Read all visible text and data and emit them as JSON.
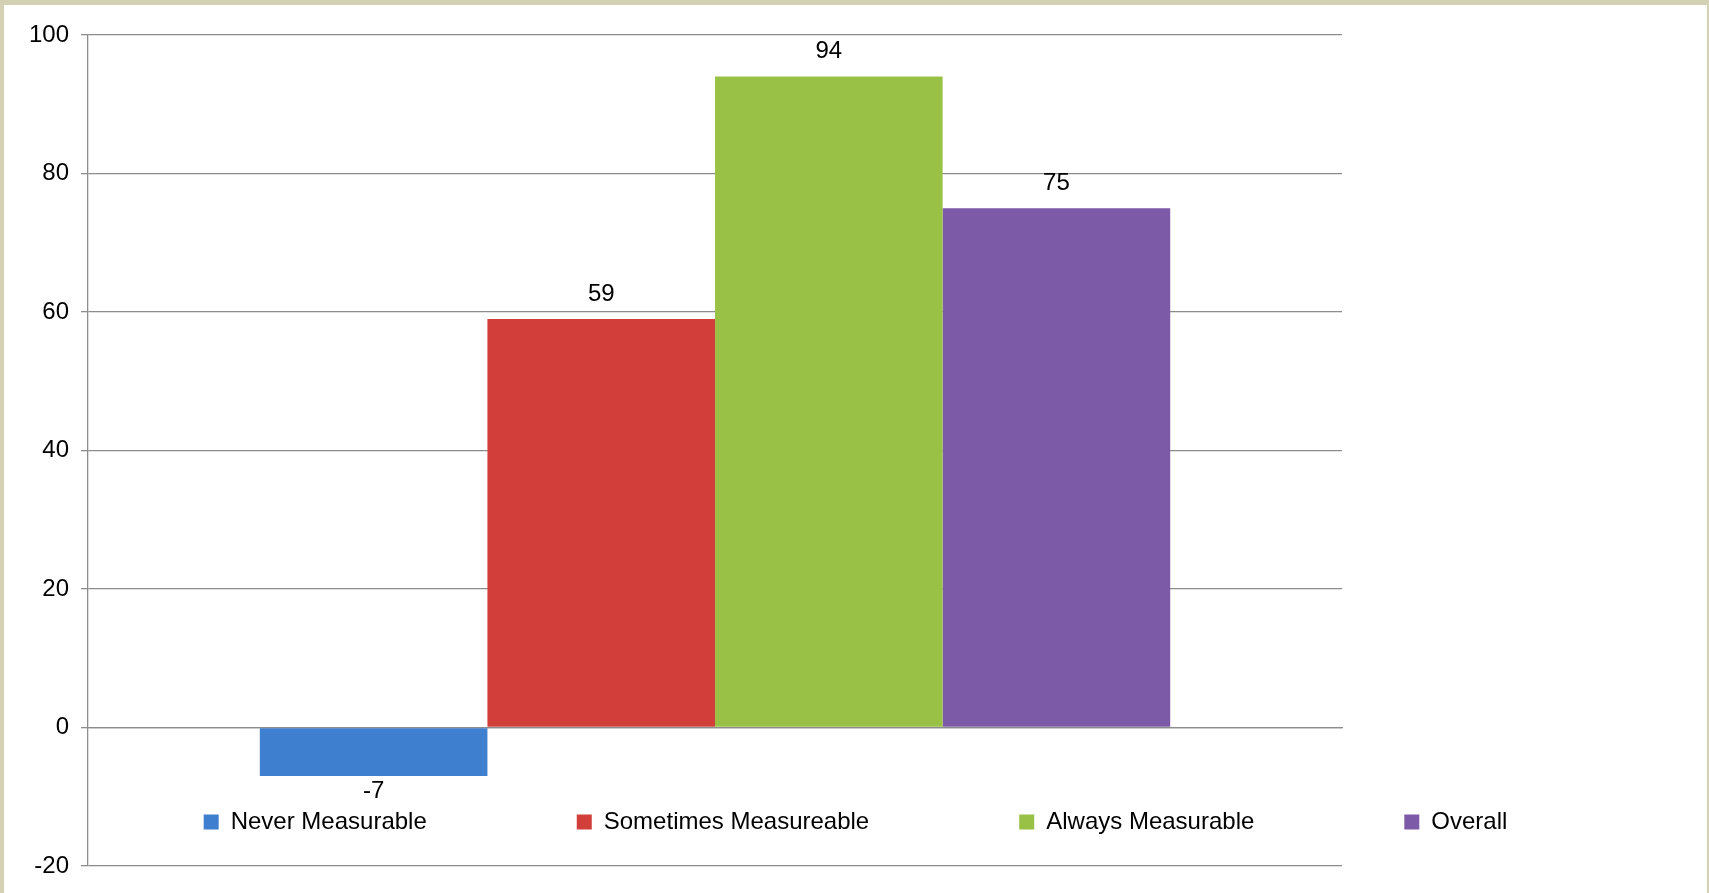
{
  "chart_data": {
    "type": "bar",
    "categories": [
      null
    ],
    "series": [
      {
        "name": "Never Measurable",
        "color": "#3f7fcf",
        "values": [
          -7
        ]
      },
      {
        "name": "Sometimes Measureable",
        "color": "#d23f3b",
        "values": [
          59
        ]
      },
      {
        "name": "Always Measurable",
        "color": "#99c146",
        "values": [
          94
        ]
      },
      {
        "name": "Overall",
        "color": "#7d5aa7",
        "values": [
          75
        ]
      }
    ],
    "ylim": [
      -20,
      100
    ],
    "yticks": [
      -20,
      0,
      20,
      40,
      60,
      80,
      100
    ],
    "grid": "y",
    "legend": "bottom",
    "data_labels": true,
    "tick_labels": "y"
  }
}
